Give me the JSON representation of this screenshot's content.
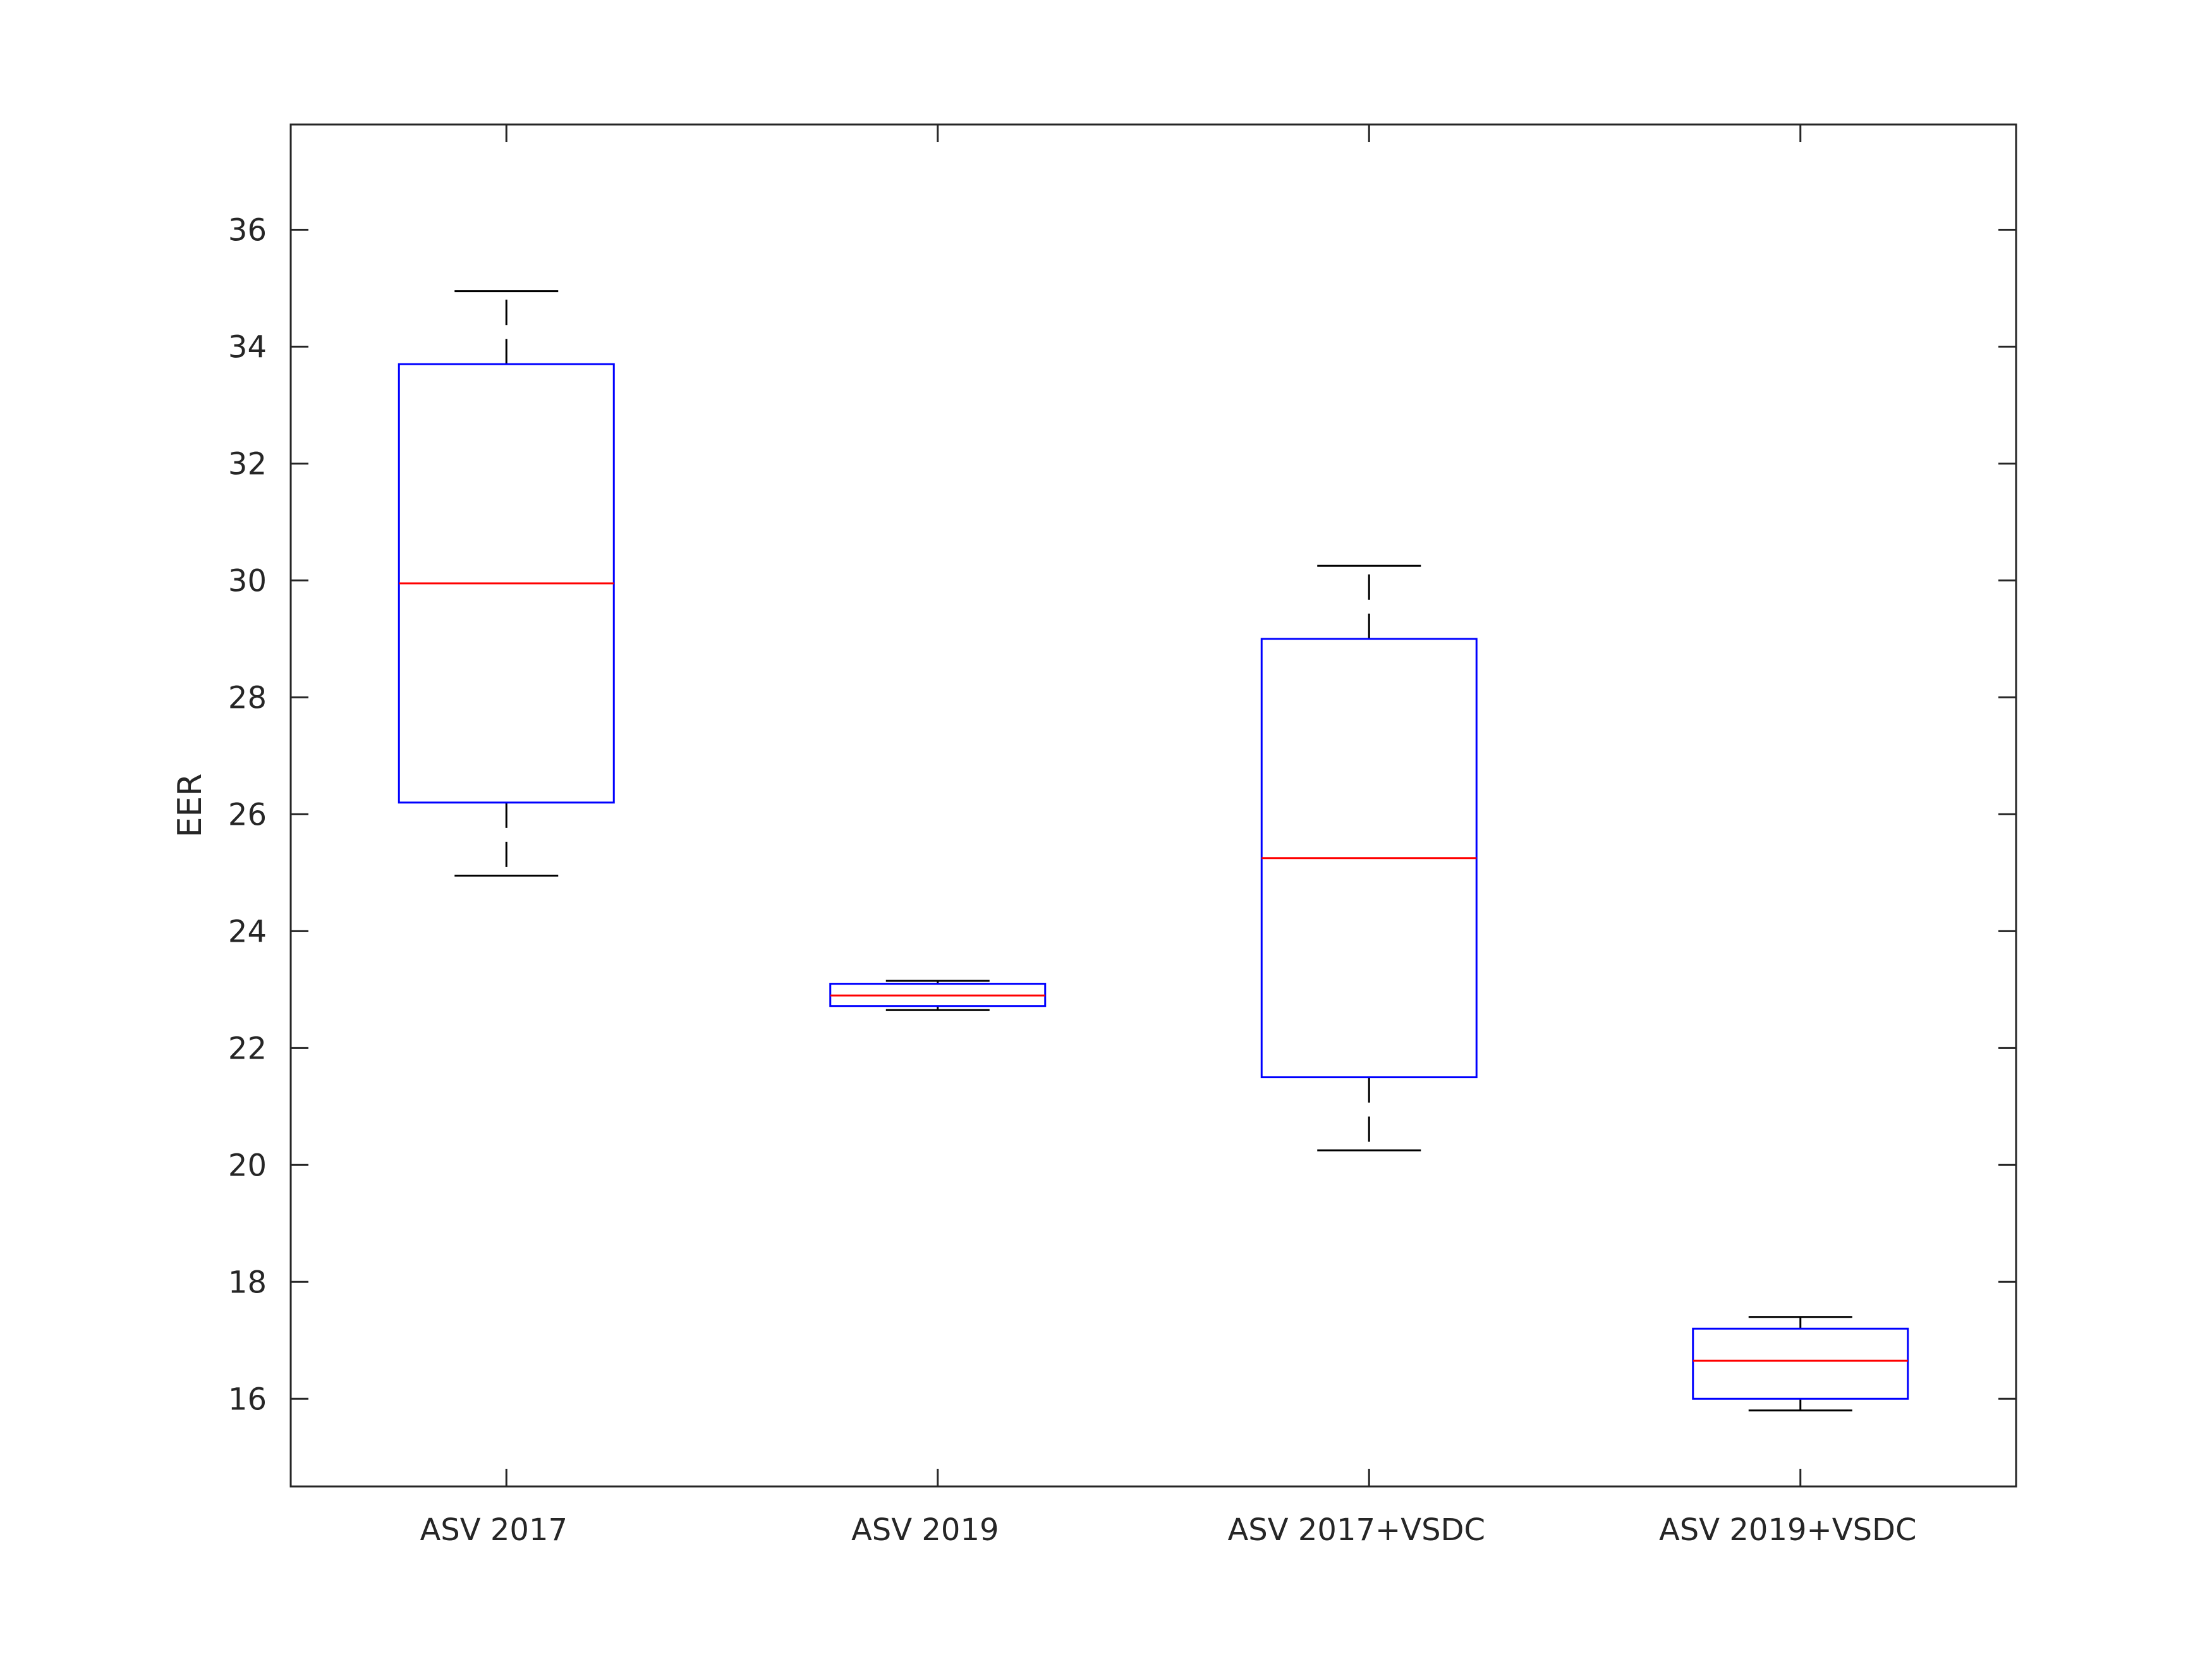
{
  "chart_data": {
    "type": "box",
    "title": "",
    "xlabel": "",
    "ylabel": "EER",
    "ylim": [
      14.5,
      37.8
    ],
    "yticks": [
      16,
      18,
      20,
      22,
      24,
      26,
      28,
      30,
      32,
      34,
      36
    ],
    "ytick_labels": [
      "16",
      "18",
      "20",
      "22",
      "24",
      "26",
      "28",
      "30",
      "32",
      "34",
      "36"
    ],
    "grid": false,
    "box_color": "#0000ff",
    "median_color": "#ff0000",
    "whisker_color": "#000000",
    "categories": [
      "ASV 2017",
      "ASV 2019",
      "ASV 2017+VSDC",
      "ASV 2019+VSDC"
    ],
    "boxes": [
      {
        "whisker_low": 24.95,
        "q1": 26.2,
        "median": 29.95,
        "q3": 33.7,
        "whisker_high": 34.95
      },
      {
        "whisker_low": 22.65,
        "q1": 22.72,
        "median": 22.9,
        "q3": 23.1,
        "whisker_high": 23.15
      },
      {
        "whisker_low": 20.25,
        "q1": 21.5,
        "median": 25.25,
        "q3": 29.0,
        "whisker_high": 30.25
      },
      {
        "whisker_low": 15.8,
        "q1": 16.0,
        "median": 16.65,
        "q3": 17.2,
        "whisker_high": 17.4
      }
    ]
  }
}
